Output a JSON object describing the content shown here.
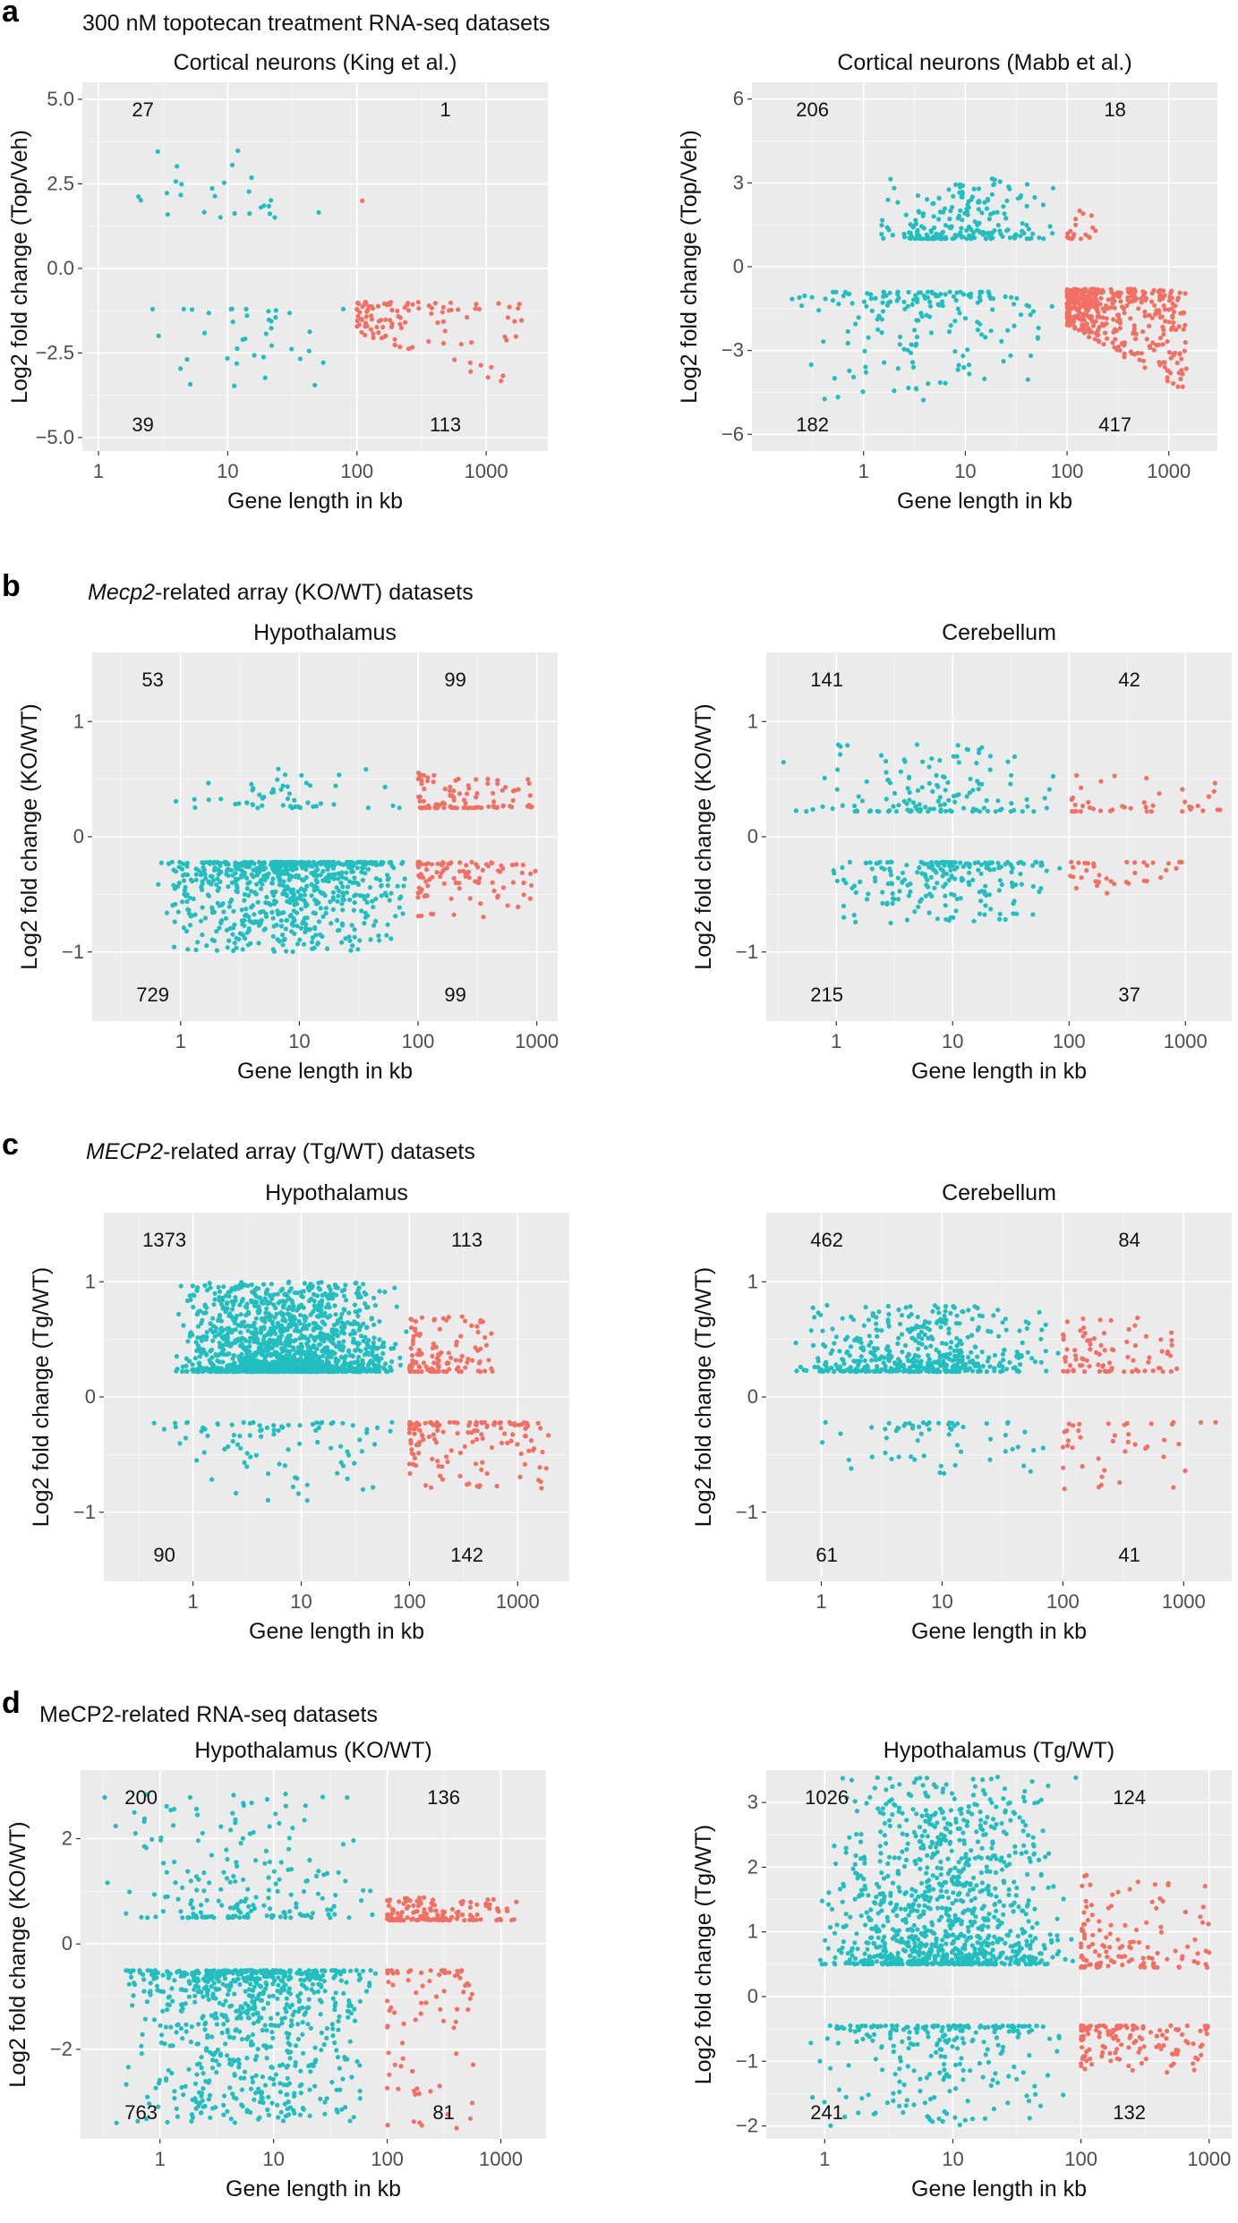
{
  "colors": {
    "teal": "#21BEBF",
    "salmon": "#F16F63",
    "panel_bg": "#EBEBEB",
    "grid": "#FFFFFF",
    "text": "#111111",
    "axis_text": "#4D4D4D"
  },
  "x_axis_label": "Gene length in kb",
  "sections": [
    {
      "letter": "a",
      "heading": "300 nM topotecan treatment RNA-seq datasets"
    },
    {
      "letter": "b",
      "heading_italic": "Mecp2",
      "heading_rest": "-related array (KO/WT) datasets"
    },
    {
      "letter": "c",
      "heading_italic": "MECP2",
      "heading_rest": "-related array (Tg/WT) datasets"
    },
    {
      "letter": "d",
      "heading": "MeCP2-related RNA-seq datasets"
    }
  ],
  "chart_data": [
    {
      "id": "a-left",
      "type": "scatter",
      "title": "Cortical neurons (King et al.)",
      "xlabel": "Gene length in kb",
      "ylabel": "Log2 fold change (Top/Veh)",
      "xscale": "log10",
      "xlim": [
        0.75,
        3000
      ],
      "ylim": [
        -5.4,
        5.5
      ],
      "yticks": [
        5.0,
        2.5,
        0.0,
        -2.5,
        -5.0
      ],
      "ytick_labels": [
        "5.0",
        "2.5",
        "0.0",
        "−2.5",
        "−5.0"
      ],
      "xticks": [
        1,
        10,
        100,
        1000
      ],
      "xtick_labels": [
        "1",
        "10",
        "100",
        "1000"
      ],
      "counts": {
        "up_short": "27",
        "up_long": "1",
        "down_short": "39",
        "down_long": "113"
      },
      "points": {
        "short_up": {
          "n": 27,
          "ymin": 1.5,
          "ymax": 3.5,
          "xmin": 1.5,
          "xmax": 80
        },
        "short_down": {
          "n": 39,
          "ymin": -3.8,
          "ymax": -1.2,
          "xmin": 1.5,
          "xmax": 90
        },
        "long_up": {
          "n": 1,
          "ymin": 2.0,
          "ymax": 2.0,
          "xmin": 110,
          "xmax": 110
        },
        "long_down": {
          "n": 113,
          "ymin": -3.6,
          "ymax": -1.0,
          "xmin": 100,
          "xmax": 2000,
          "trend": true
        }
      }
    },
    {
      "id": "a-right",
      "type": "scatter",
      "title": "Cortical neurons (Mabb et al.)",
      "xlabel": "Gene length in kb",
      "ylabel": "Log2 fold change (Top/Veh)",
      "xscale": "log10",
      "xlim": [
        0.08,
        3000
      ],
      "ylim": [
        -6.6,
        6.6
      ],
      "yticks": [
        6,
        3,
        0,
        -3,
        -6
      ],
      "ytick_labels": [
        "6",
        "3",
        "0",
        "−3",
        "−6"
      ],
      "xticks": [
        1,
        10,
        100,
        1000
      ],
      "xtick_labels": [
        "1",
        "10",
        "100",
        "1000"
      ],
      "counts": {
        "up_short": "206",
        "up_long": "18",
        "down_short": "182",
        "down_long": "417"
      },
      "points": {
        "short_up": {
          "n": 206,
          "ymin": 1.0,
          "ymax": 3.2,
          "xmin": 0.8,
          "xmax": 95
        },
        "short_down": {
          "n": 182,
          "ymin": -4.8,
          "ymax": -0.9,
          "xmin": 0.15,
          "xmax": 95
        },
        "long_up": {
          "n": 18,
          "ymin": 1.0,
          "ymax": 2.5,
          "xmin": 100,
          "xmax": 200
        },
        "long_down": {
          "n": 417,
          "ymin": -4.5,
          "ymax": -0.8,
          "xmin": 100,
          "xmax": 1500,
          "trend": true
        }
      }
    },
    {
      "id": "b-left",
      "type": "scatter",
      "title": "Hypothalamus",
      "xlabel": "Gene length in kb",
      "ylabel": "Log2 fold change (KO/WT)",
      "xscale": "log10",
      "xlim": [
        0.18,
        1500
      ],
      "ylim": [
        -1.6,
        1.6
      ],
      "yticks": [
        1,
        0,
        -1
      ],
      "ytick_labels": [
        "1",
        "0",
        "−1"
      ],
      "xticks": [
        1,
        10,
        100,
        1000
      ],
      "xtick_labels": [
        "1",
        "10",
        "100",
        "1000"
      ],
      "counts": {
        "up_short": "53",
        "up_long": "99",
        "down_short": "729",
        "down_long": "99"
      },
      "points": {
        "short_up": {
          "n": 53,
          "ymin": 0.25,
          "ymax": 0.6,
          "xmin": 0.6,
          "xmax": 95
        },
        "short_down": {
          "n": 729,
          "ymin": -1.0,
          "ymax": -0.22,
          "xmin": 0.6,
          "xmax": 95
        },
        "long_up": {
          "n": 99,
          "ymin": 0.25,
          "ymax": 0.6,
          "xmin": 100,
          "xmax": 1000
        },
        "long_down": {
          "n": 99,
          "ymin": -0.7,
          "ymax": -0.22,
          "xmin": 100,
          "xmax": 1000
        }
      }
    },
    {
      "id": "b-right",
      "type": "scatter",
      "title": "Cerebellum",
      "xlabel": "Gene length in kb",
      "ylabel": "Log2 fold change (KO/WT)",
      "xscale": "log10",
      "xlim": [
        0.25,
        2500
      ],
      "ylim": [
        -1.6,
        1.6
      ],
      "yticks": [
        1,
        0,
        -1
      ],
      "ytick_labels": [
        "1",
        "0",
        "−1"
      ],
      "xticks": [
        1,
        10,
        100,
        1000
      ],
      "xtick_labels": [
        "1",
        "10",
        "100",
        "1000"
      ],
      "counts": {
        "up_short": "141",
        "up_long": "42",
        "down_short": "215",
        "down_long": "37"
      },
      "points": {
        "short_up": {
          "n": 141,
          "ymin": 0.22,
          "ymax": 0.8,
          "xmin": 0.3,
          "xmax": 95
        },
        "short_down": {
          "n": 215,
          "ymin": -0.75,
          "ymax": -0.22,
          "xmin": 0.8,
          "xmax": 95
        },
        "long_up": {
          "n": 42,
          "ymin": 0.22,
          "ymax": 0.55,
          "xmin": 100,
          "xmax": 2000
        },
        "long_down": {
          "n": 37,
          "ymin": -0.5,
          "ymax": -0.22,
          "xmin": 100,
          "xmax": 1000
        }
      }
    },
    {
      "id": "c-left",
      "type": "scatter",
      "title": "Hypothalamus",
      "xlabel": "Gene length in kb",
      "ylabel": "Log2 fold change (Tg/WT)",
      "xscale": "log10",
      "xlim": [
        0.15,
        3000
      ],
      "ylim": [
        -1.6,
        1.6
      ],
      "yticks": [
        1,
        0,
        -1
      ],
      "ytick_labels": [
        "1",
        "0",
        "−1"
      ],
      "xticks": [
        1,
        10,
        100,
        1000
      ],
      "xtick_labels": [
        "1",
        "10",
        "100",
        "1000"
      ],
      "counts": {
        "up_short": "1373",
        "up_long": "113",
        "down_short": "90",
        "down_long": "142"
      },
      "points": {
        "short_up": {
          "n": 1373,
          "ymin": 0.22,
          "ymax": 1.0,
          "xmin": 0.6,
          "xmax": 95
        },
        "short_down": {
          "n": 90,
          "ymin": -0.9,
          "ymax": -0.22,
          "xmin": 0.3,
          "xmax": 95
        },
        "long_up": {
          "n": 113,
          "ymin": 0.22,
          "ymax": 0.7,
          "xmin": 100,
          "xmax": 600
        },
        "long_down": {
          "n": 142,
          "ymin": -0.8,
          "ymax": -0.22,
          "xmin": 100,
          "xmax": 2000
        }
      }
    },
    {
      "id": "c-right",
      "type": "scatter",
      "title": "Cerebellum",
      "xlabel": "Gene length in kb",
      "ylabel": "Log2 fold change (Tg/WT)",
      "xscale": "log10",
      "xlim": [
        0.35,
        2500
      ],
      "ylim": [
        -1.6,
        1.6
      ],
      "yticks": [
        1,
        0,
        -1
      ],
      "ytick_labels": [
        "1",
        "0",
        "−1"
      ],
      "xticks": [
        1,
        10,
        100,
        1000
      ],
      "xtick_labels": [
        "1",
        "10",
        "100",
        "1000"
      ],
      "counts": {
        "up_short": "462",
        "up_long": "84",
        "down_short": "61",
        "down_long": "41"
      },
      "points": {
        "short_up": {
          "n": 462,
          "ymin": 0.22,
          "ymax": 0.8,
          "xmin": 0.5,
          "xmax": 95
        },
        "short_down": {
          "n": 61,
          "ymin": -0.7,
          "ymax": -0.22,
          "xmin": 0.9,
          "xmax": 95
        },
        "long_up": {
          "n": 84,
          "ymin": 0.22,
          "ymax": 0.7,
          "xmin": 100,
          "xmax": 1000
        },
        "long_down": {
          "n": 41,
          "ymin": -0.8,
          "ymax": -0.22,
          "xmin": 100,
          "xmax": 2000
        }
      }
    },
    {
      "id": "d-left",
      "type": "scatter",
      "title": "Hypothalamus (KO/WT)",
      "xlabel": "Gene length in kb",
      "ylabel": "Log2 fold change (KO/WT)",
      "xscale": "log10",
      "xlim": [
        0.2,
        2500
      ],
      "ylim": [
        -3.7,
        3.3
      ],
      "yticks": [
        2,
        0,
        -2
      ],
      "ytick_labels": [
        "2",
        "0",
        "−2"
      ],
      "xticks": [
        1,
        10,
        100,
        1000
      ],
      "xtick_labels": [
        "1",
        "10",
        "100",
        "1000"
      ],
      "counts": {
        "up_short": "200",
        "up_long": "136",
        "down_short": "763",
        "down_long": "81"
      },
      "points": {
        "short_up": {
          "n": 200,
          "ymin": 0.5,
          "ymax": 2.9,
          "xmin": 0.3,
          "xmax": 95
        },
        "short_down": {
          "n": 763,
          "ymin": -3.4,
          "ymax": -0.5,
          "xmin": 0.4,
          "xmax": 95
        },
        "long_up": {
          "n": 136,
          "ymin": 0.45,
          "ymax": 0.9,
          "xmin": 100,
          "xmax": 1500
        },
        "long_down": {
          "n": 81,
          "ymin": -3.5,
          "ymax": -0.5,
          "xmin": 100,
          "xmax": 600
        }
      }
    },
    {
      "id": "d-right",
      "type": "scatter",
      "title": "Hypothalamus (Tg/WT)",
      "xlabel": "Gene length in kb",
      "ylabel": "Log2 fold change (Tg/WT)",
      "xscale": "log10",
      "xlim": [
        0.35,
        1500
      ],
      "ylim": [
        -2.2,
        3.5
      ],
      "yticks": [
        3,
        2,
        1,
        0,
        -1,
        -2
      ],
      "ytick_labels": [
        "3",
        "2",
        "1",
        "0",
        "−1",
        "−2"
      ],
      "xticks": [
        1,
        10,
        100,
        1000
      ],
      "xtick_labels": [
        "1",
        "10",
        "100",
        "1000"
      ],
      "counts": {
        "up_short": "1026",
        "up_long": "124",
        "down_short": "241",
        "down_long": "132"
      },
      "points": {
        "short_up": {
          "n": 1026,
          "ymin": 0.5,
          "ymax": 3.4,
          "xmin": 0.8,
          "xmax": 95
        },
        "short_down": {
          "n": 241,
          "ymin": -2.0,
          "ymax": -0.45,
          "xmin": 0.5,
          "xmax": 95
        },
        "long_up": {
          "n": 124,
          "ymin": 0.45,
          "ymax": 1.9,
          "xmin": 100,
          "xmax": 1000
        },
        "long_down": {
          "n": 132,
          "ymin": -1.2,
          "ymax": -0.45,
          "xmin": 100,
          "xmax": 1000
        }
      }
    }
  ]
}
